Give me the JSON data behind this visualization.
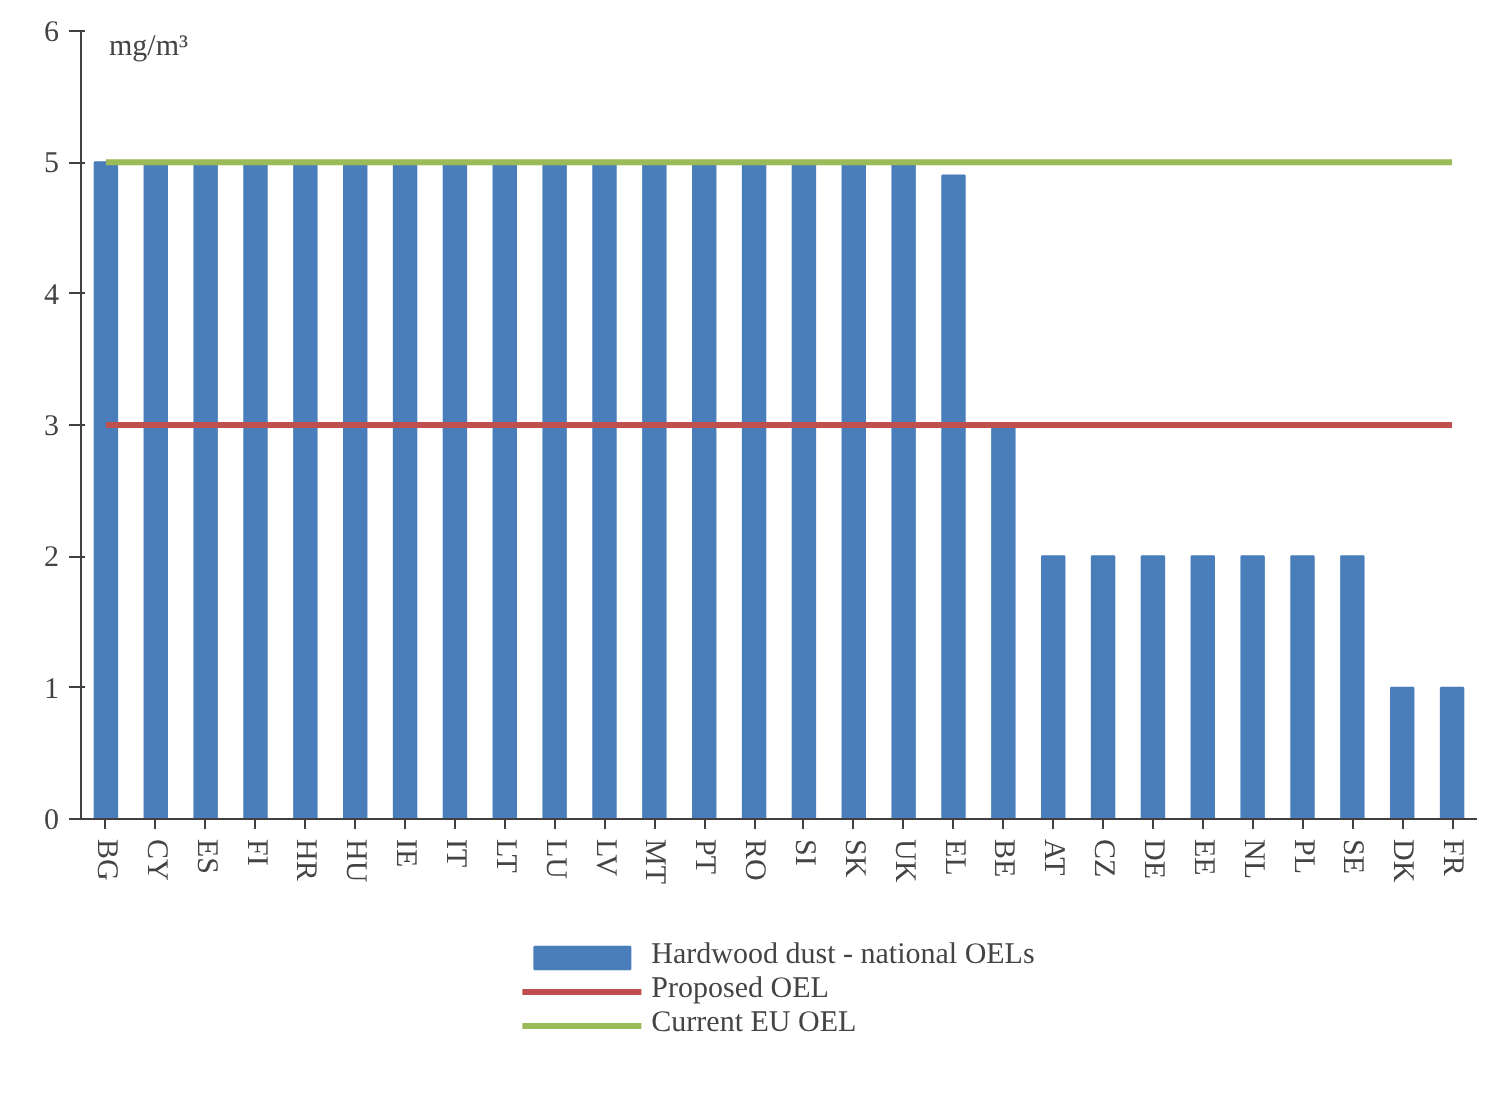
{
  "chart_data": {
    "type": "bar",
    "ylabel": "mg/m³",
    "categories": [
      "BG",
      "CY",
      "ES",
      "FI",
      "HR",
      "HU",
      "IE",
      "IT",
      "LT",
      "LU",
      "LV",
      "MT",
      "PT",
      "RO",
      "SI",
      "SK",
      "UK",
      "EL",
      "BE",
      "AT",
      "CZ",
      "DE",
      "EE",
      "NL",
      "PL",
      "SE",
      "DK",
      "FR"
    ],
    "series": [
      {
        "name": "Hardwood dust - national OELs",
        "color": "#4a7ebb",
        "values": [
          5,
          5,
          5,
          5,
          5,
          5,
          5,
          5,
          5,
          5,
          5,
          5,
          5,
          5,
          5,
          5,
          5,
          4.9,
          3,
          2,
          2,
          2,
          2,
          2,
          2,
          2,
          1,
          1
        ]
      },
      {
        "name": "Proposed OEL",
        "type": "line",
        "color": "#c0504d",
        "values": [
          3,
          3,
          3,
          3,
          3,
          3,
          3,
          3,
          3,
          3,
          3,
          3,
          3,
          3,
          3,
          3,
          3,
          3,
          3,
          3,
          3,
          3,
          3,
          3,
          3,
          3,
          3,
          3
        ]
      },
      {
        "name": "Current EU OEL",
        "type": "line",
        "color": "#9bbb59",
        "values": [
          5,
          5,
          5,
          5,
          5,
          5,
          5,
          5,
          5,
          5,
          5,
          5,
          5,
          5,
          5,
          5,
          5,
          5,
          5,
          5,
          5,
          5,
          5,
          5,
          5,
          5,
          5,
          5
        ]
      }
    ],
    "ylim": [
      0,
      6
    ],
    "yticks": [
      0,
      1,
      2,
      3,
      4,
      5,
      6
    ],
    "grid": false,
    "legend": "bottom"
  }
}
